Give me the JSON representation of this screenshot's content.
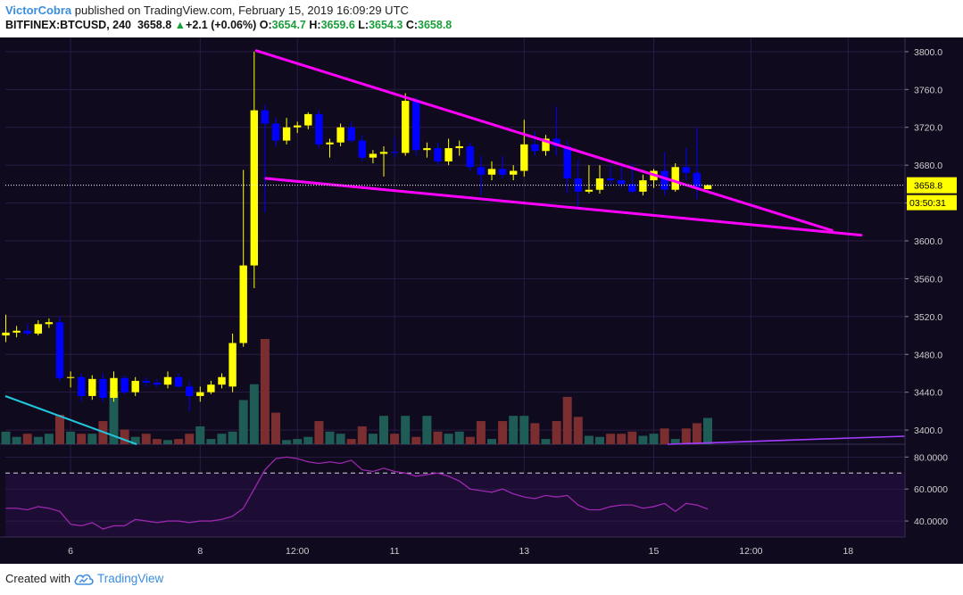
{
  "header": {
    "author": "VictorCobra",
    "published_text": "published on TradingView.com, February 15, 2019 16:09:29 UTC",
    "symbol": "BITFINEX:BTCUSD, 240",
    "last": "3658.8",
    "change_arrow": "▲",
    "change": "+2.1 (+0.06%)",
    "o_label": "O:",
    "o_value": "3654.7",
    "h_label": "H:",
    "h_value": "3659.6",
    "l_label": "L:",
    "l_value": "3654.3",
    "c_label": "C:",
    "c_value": "3658.8"
  },
  "footer": {
    "created_with": "Created with",
    "brand": "TradingView",
    "logo_icon": "tradingview-cloud-icon"
  },
  "colors": {
    "background": "#0f0a1e",
    "grid": "#2b1c47",
    "bull_candle": "#ffff00",
    "bear_candle": "#0000ff",
    "volume_up": "#1f5c55",
    "volume_down": "#7a2e30",
    "trendline": "#ff00ff",
    "rsi_line": "#9c27b0",
    "cyan_line": "#23c7dd",
    "price_label_bg": "#ffff00"
  },
  "chart_data": {
    "type": "candlestick",
    "symbol": "BITFINEX:BTCUSD",
    "interval": "240",
    "price_axis": {
      "ticks": [
        "3800.0",
        "3760.0",
        "3720.0",
        "3680.0",
        "3640.0",
        "3600.0",
        "3560.0",
        "3520.0",
        "3480.0",
        "3440.0",
        "3400.0"
      ],
      "ylim": [
        3385,
        3815
      ]
    },
    "current_price_label": "3658.8",
    "countdown_label": "03:50:31",
    "time_axis": {
      "labels": [
        {
          "text": "6",
          "t": 6
        },
        {
          "text": "8",
          "t": 18
        },
        {
          "text": "12:00",
          "t": 27
        },
        {
          "text": "11",
          "t": 36
        },
        {
          "text": "13",
          "t": 48
        },
        {
          "text": "15",
          "t": 60
        },
        {
          "text": "12:00",
          "t": 69
        },
        {
          "text": "18",
          "t": 78
        }
      ]
    },
    "candles": [
      {
        "t": 0,
        "o": 3500,
        "h": 3522,
        "l": 3493,
        "c": 3503
      },
      {
        "t": 1,
        "o": 3503,
        "h": 3510,
        "l": 3498,
        "c": 3505
      },
      {
        "t": 2,
        "o": 3505,
        "h": 3512,
        "l": 3500,
        "c": 3502
      },
      {
        "t": 3,
        "o": 3502,
        "h": 3516,
        "l": 3500,
        "c": 3512
      },
      {
        "t": 4,
        "o": 3512,
        "h": 3518,
        "l": 3508,
        "c": 3514
      },
      {
        "t": 5,
        "o": 3514,
        "h": 3520,
        "l": 3452,
        "c": 3455
      },
      {
        "t": 6,
        "o": 3455,
        "h": 3462,
        "l": 3445,
        "c": 3456
      },
      {
        "t": 7,
        "o": 3456,
        "h": 3460,
        "l": 3430,
        "c": 3436
      },
      {
        "t": 8,
        "o": 3436,
        "h": 3458,
        "l": 3432,
        "c": 3454
      },
      {
        "t": 9,
        "o": 3454,
        "h": 3460,
        "l": 3430,
        "c": 3434
      },
      {
        "t": 10,
        "o": 3434,
        "h": 3462,
        "l": 3430,
        "c": 3455
      },
      {
        "t": 11,
        "o": 3455,
        "h": 3458,
        "l": 3438,
        "c": 3440
      },
      {
        "t": 12,
        "o": 3440,
        "h": 3456,
        "l": 3436,
        "c": 3452
      },
      {
        "t": 13,
        "o": 3452,
        "h": 3456,
        "l": 3446,
        "c": 3450
      },
      {
        "t": 14,
        "o": 3450,
        "h": 3454,
        "l": 3445,
        "c": 3448
      },
      {
        "t": 15,
        "o": 3448,
        "h": 3462,
        "l": 3444,
        "c": 3456
      },
      {
        "t": 16,
        "o": 3456,
        "h": 3460,
        "l": 3444,
        "c": 3446
      },
      {
        "t": 17,
        "o": 3446,
        "h": 3452,
        "l": 3420,
        "c": 3436
      },
      {
        "t": 18,
        "o": 3436,
        "h": 3446,
        "l": 3430,
        "c": 3440
      },
      {
        "t": 19,
        "o": 3440,
        "h": 3452,
        "l": 3438,
        "c": 3448
      },
      {
        "t": 20,
        "o": 3448,
        "h": 3460,
        "l": 3444,
        "c": 3456
      },
      {
        "t": 21,
        "o": 3446,
        "h": 3502,
        "l": 3440,
        "c": 3492
      },
      {
        "t": 22,
        "o": 3492,
        "h": 3675,
        "l": 3488,
        "c": 3574
      },
      {
        "t": 23,
        "o": 3574,
        "h": 3800,
        "l": 3550,
        "c": 3738
      },
      {
        "t": 24,
        "o": 3738,
        "h": 3744,
        "l": 3630,
        "c": 3724
      },
      {
        "t": 25,
        "o": 3724,
        "h": 3730,
        "l": 3700,
        "c": 3706
      },
      {
        "t": 26,
        "o": 3706,
        "h": 3730,
        "l": 3702,
        "c": 3720
      },
      {
        "t": 27,
        "o": 3720,
        "h": 3726,
        "l": 3714,
        "c": 3722
      },
      {
        "t": 28,
        "o": 3722,
        "h": 3736,
        "l": 3718,
        "c": 3734
      },
      {
        "t": 29,
        "o": 3734,
        "h": 3738,
        "l": 3698,
        "c": 3702
      },
      {
        "t": 30,
        "o": 3702,
        "h": 3708,
        "l": 3688,
        "c": 3704
      },
      {
        "t": 31,
        "o": 3704,
        "h": 3724,
        "l": 3700,
        "c": 3720
      },
      {
        "t": 32,
        "o": 3720,
        "h": 3726,
        "l": 3704,
        "c": 3706
      },
      {
        "t": 33,
        "o": 3706,
        "h": 3712,
        "l": 3684,
        "c": 3688
      },
      {
        "t": 34,
        "o": 3688,
        "h": 3696,
        "l": 3682,
        "c": 3692
      },
      {
        "t": 35,
        "o": 3692,
        "h": 3700,
        "l": 3668,
        "c": 3694
      },
      {
        "t": 36,
        "o": 3694,
        "h": 3710,
        "l": 3688,
        "c": 3693
      },
      {
        "t": 37,
        "o": 3693,
        "h": 3756,
        "l": 3690,
        "c": 3748
      },
      {
        "t": 38,
        "o": 3748,
        "h": 3752,
        "l": 3690,
        "c": 3696
      },
      {
        "t": 39,
        "o": 3696,
        "h": 3704,
        "l": 3688,
        "c": 3698
      },
      {
        "t": 40,
        "o": 3698,
        "h": 3704,
        "l": 3680,
        "c": 3684
      },
      {
        "t": 41,
        "o": 3684,
        "h": 3708,
        "l": 3680,
        "c": 3698
      },
      {
        "t": 42,
        "o": 3698,
        "h": 3706,
        "l": 3690,
        "c": 3700
      },
      {
        "t": 43,
        "o": 3700,
        "h": 3704,
        "l": 3674,
        "c": 3678
      },
      {
        "t": 44,
        "o": 3678,
        "h": 3690,
        "l": 3648,
        "c": 3670
      },
      {
        "t": 45,
        "o": 3670,
        "h": 3684,
        "l": 3664,
        "c": 3676
      },
      {
        "t": 46,
        "o": 3676,
        "h": 3690,
        "l": 3666,
        "c": 3670
      },
      {
        "t": 47,
        "o": 3670,
        "h": 3680,
        "l": 3664,
        "c": 3674
      },
      {
        "t": 48,
        "o": 3674,
        "h": 3728,
        "l": 3668,
        "c": 3702
      },
      {
        "t": 49,
        "o": 3702,
        "h": 3716,
        "l": 3690,
        "c": 3695
      },
      {
        "t": 50,
        "o": 3695,
        "h": 3712,
        "l": 3690,
        "c": 3708
      },
      {
        "t": 51,
        "o": 3708,
        "h": 3742,
        "l": 3690,
        "c": 3700
      },
      {
        "t": 52,
        "o": 3700,
        "h": 3706,
        "l": 3650,
        "c": 3666
      },
      {
        "t": 53,
        "o": 3666,
        "h": 3686,
        "l": 3634,
        "c": 3652
      },
      {
        "t": 54,
        "o": 3652,
        "h": 3680,
        "l": 3650,
        "c": 3654
      },
      {
        "t": 55,
        "o": 3654,
        "h": 3680,
        "l": 3650,
        "c": 3666
      },
      {
        "t": 56,
        "o": 3666,
        "h": 3680,
        "l": 3658,
        "c": 3664
      },
      {
        "t": 57,
        "o": 3664,
        "h": 3680,
        "l": 3656,
        "c": 3660
      },
      {
        "t": 58,
        "o": 3660,
        "h": 3682,
        "l": 3650,
        "c": 3652
      },
      {
        "t": 59,
        "o": 3652,
        "h": 3670,
        "l": 3648,
        "c": 3664
      },
      {
        "t": 60,
        "o": 3664,
        "h": 3676,
        "l": 3656,
        "c": 3674
      },
      {
        "t": 61,
        "o": 3674,
        "h": 3694,
        "l": 3648,
        "c": 3654
      },
      {
        "t": 62,
        "o": 3654,
        "h": 3682,
        "l": 3652,
        "c": 3678
      },
      {
        "t": 63,
        "o": 3678,
        "h": 3698,
        "l": 3664,
        "c": 3672
      },
      {
        "t": 64,
        "o": 3672,
        "h": 3720,
        "l": 3644,
        "c": 3656
      },
      {
        "t": 65,
        "o": 3654.7,
        "h": 3659.6,
        "l": 3654.3,
        "c": 3658.8
      }
    ],
    "volume_ratios": [
      0.12,
      0.07,
      0.1,
      0.07,
      0.1,
      0.28,
      0.12,
      0.1,
      0.1,
      0.22,
      0.5,
      0.14,
      0.07,
      0.1,
      0.05,
      0.04,
      0.05,
      0.1,
      0.17,
      0.05,
      0.1,
      0.12,
      0.42,
      0.57,
      1.0,
      0.3,
      0.04,
      0.05,
      0.07,
      0.22,
      0.12,
      0.1,
      0.05,
      0.17,
      0.1,
      0.27,
      0.1,
      0.27,
      0.07,
      0.27,
      0.12,
      0.1,
      0.12,
      0.07,
      0.22,
      0.05,
      0.22,
      0.27,
      0.27,
      0.2,
      0.05,
      0.22,
      0.45,
      0.26,
      0.08,
      0.07,
      0.1,
      0.1,
      0.12,
      0.08,
      0.1,
      0.15,
      0.05,
      0.15,
      0.2,
      0.25
    ],
    "rsi": {
      "levels": [
        "80.0000",
        "60.0000",
        "40.0000"
      ],
      "ylim": [
        30,
        88
      ],
      "overbought": 70,
      "oversold": 30,
      "values": [
        48,
        48,
        47,
        49,
        48,
        46,
        38,
        37,
        39,
        35,
        37,
        37,
        41,
        40,
        39,
        40,
        40,
        39,
        40,
        40,
        41,
        43,
        48,
        60,
        72,
        79,
        80,
        79,
        77,
        76,
        77,
        76,
        78,
        72,
        71,
        73,
        71,
        70,
        68,
        69,
        70,
        68,
        65,
        60,
        59,
        58,
        60,
        57,
        55,
        54,
        56,
        55,
        56,
        50,
        47,
        47,
        49,
        50,
        50,
        48,
        49,
        51,
        46,
        51,
        50,
        47.5
      ]
    },
    "trendlines": [
      {
        "name": "",
        "from": {
          "t": 23.2,
          "p": 3801
        },
        "to": {
          "t": 76.5,
          "p": 3611
        }
      },
      {
        "name": "",
        "from": {
          "t": 24.1,
          "p": 3666
        },
        "to": {
          "t": 79.2,
          "p": 3606
        }
      }
    ]
  }
}
